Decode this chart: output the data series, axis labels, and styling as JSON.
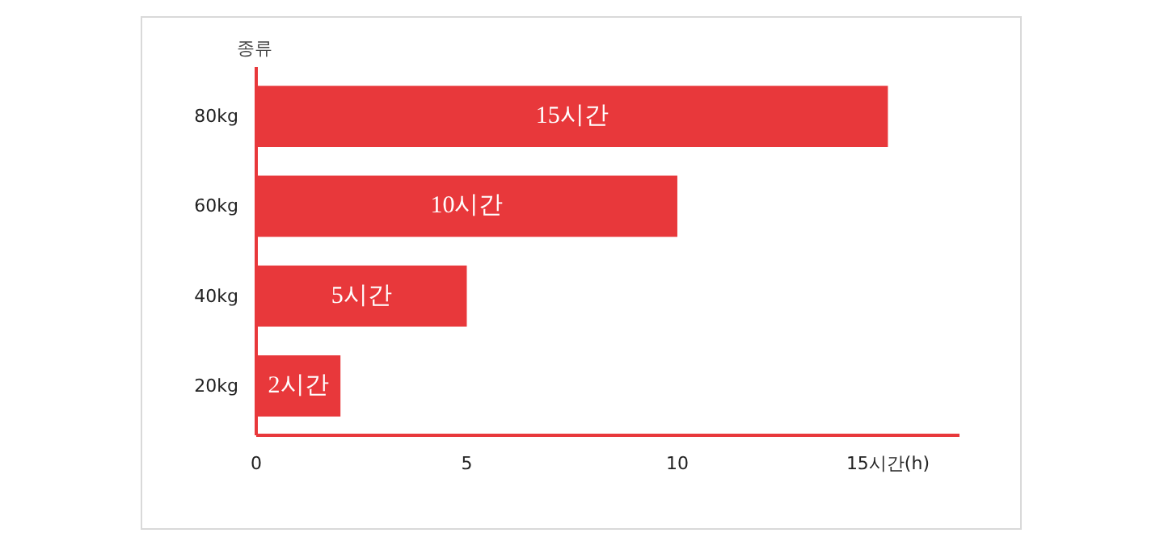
{
  "chart_data": {
    "type": "bar",
    "orientation": "horizontal",
    "ylabel": "종류",
    "categories": [
      "80kg",
      "60kg",
      "40kg",
      "20kg"
    ],
    "values": [
      15,
      10,
      5,
      2
    ],
    "value_labels": [
      "15시간",
      "10시간",
      "5시간",
      "2시간"
    ],
    "color": "#e8383b",
    "xlim": [
      0,
      16.7
    ],
    "xticks": [
      0,
      5,
      10,
      {
        "value": 15,
        "label": "15시간(h)"
      }
    ],
    "grid": false
  }
}
